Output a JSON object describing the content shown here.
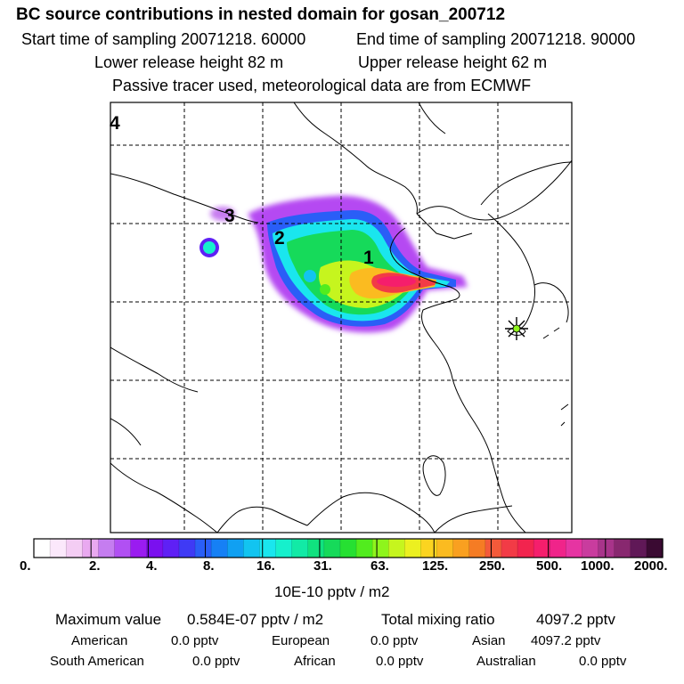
{
  "header": {
    "title": "BC  source contributions in nested domain for gosan_200712",
    "start": "Start time of sampling 20071218. 60000",
    "end": "End time of sampling 20071218. 90000",
    "lower": "Lower release height   82 m",
    "upper": "Upper release height   62 m",
    "tracer": "Passive tracer used, meteorological data are from ECMWF"
  },
  "map": {
    "region_labels": [
      "1",
      "2",
      "3",
      "4"
    ],
    "receptor_marker": "star-receptor-icon"
  },
  "colorbar": {
    "ticks": [
      "0.",
      "2.",
      "4.",
      "8.",
      "16.",
      "31.",
      "63.",
      "125.",
      "250.",
      "500.",
      "1000.",
      "2000."
    ],
    "unit": "10E-10 pptv / m2",
    "colors": [
      "#ffffff",
      "#fbe8fb",
      "#f4cdf4",
      "#e9a9f0",
      "#c57df0",
      "#b150f3",
      "#9a1cf0",
      "#7a10ef",
      "#5f20f5",
      "#3f3af5",
      "#2a5ef7",
      "#1680f5",
      "#10a0f2",
      "#12c4f0",
      "#1ae6ee",
      "#16f0cc",
      "#12eaa6",
      "#10e27f",
      "#16da5a",
      "#26e032",
      "#52ec1e",
      "#8ef51c",
      "#c6f51e",
      "#ecf020",
      "#fbd420",
      "#fbbb20",
      "#f9a020",
      "#f57c24",
      "#f45a3a",
      "#f23b46",
      "#f2244e",
      "#f51e6c",
      "#f0248a",
      "#e634a2",
      "#c93c9e",
      "#a8348a",
      "#88286f",
      "#601857",
      "#3a0a32"
    ]
  },
  "stats": {
    "max_label": "Maximum value",
    "max_value": "0.584E-07 pptv / m2",
    "total_label": "Total mixing ratio",
    "total_value": "4097.2 pptv",
    "regions": [
      {
        "name": "American",
        "value": "0.0 pptv"
      },
      {
        "name": "European",
        "value": "0.0 pptv"
      },
      {
        "name": "Asian",
        "value": "4097.2 pptv"
      },
      {
        "name": "South American",
        "value": "0.0 pptv"
      },
      {
        "name": "African",
        "value": "0.0 pptv"
      },
      {
        "name": "Australian",
        "value": "0.0 pptv"
      }
    ]
  }
}
